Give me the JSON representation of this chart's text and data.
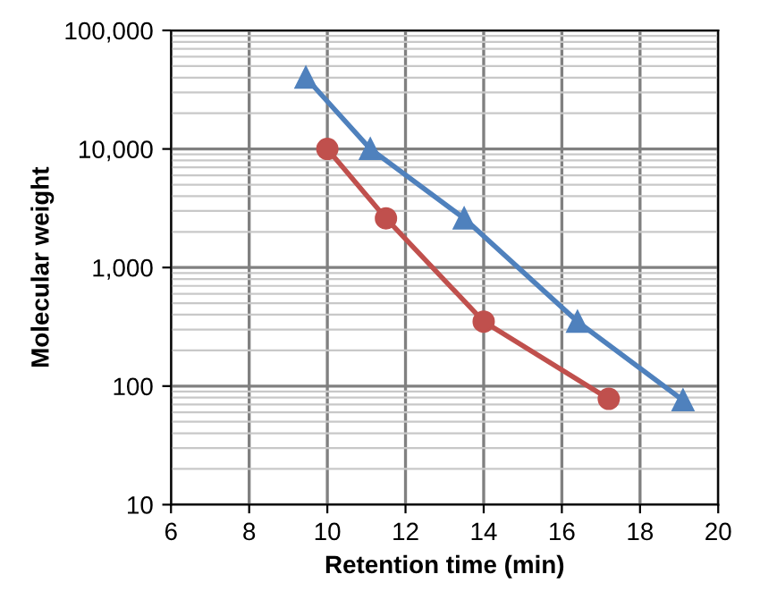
{
  "chart_data": {
    "type": "line",
    "xlabel": "Retention time (min)",
    "ylabel": "Molecular weight",
    "series": [
      {
        "color": "#c0504d",
        "marker": "circle",
        "x": [
          10,
          11.5,
          14,
          17.2
        ],
        "values": [
          10000,
          2600,
          350,
          78
        ]
      },
      {
        "color": "#4f81bd",
        "marker": "triangle",
        "x": [
          9.45,
          11.1,
          13.5,
          16.4,
          19.1
        ],
        "values": [
          40000,
          10000,
          2600,
          350,
          76
        ]
      }
    ],
    "log": "y",
    "xlim": [
      6,
      20
    ],
    "xticks": [
      6,
      8,
      10,
      12,
      14,
      16,
      18,
      20
    ],
    "ylim": [
      10,
      100000
    ],
    "yticks": [
      10,
      100,
      {
        "value": 1000,
        "label": "1,000"
      },
      {
        "value": 10000,
        "label": "10,000"
      },
      {
        "value": 100000,
        "label": "100,000"
      }
    ],
    "grid": true,
    "line_style": "solid"
  }
}
